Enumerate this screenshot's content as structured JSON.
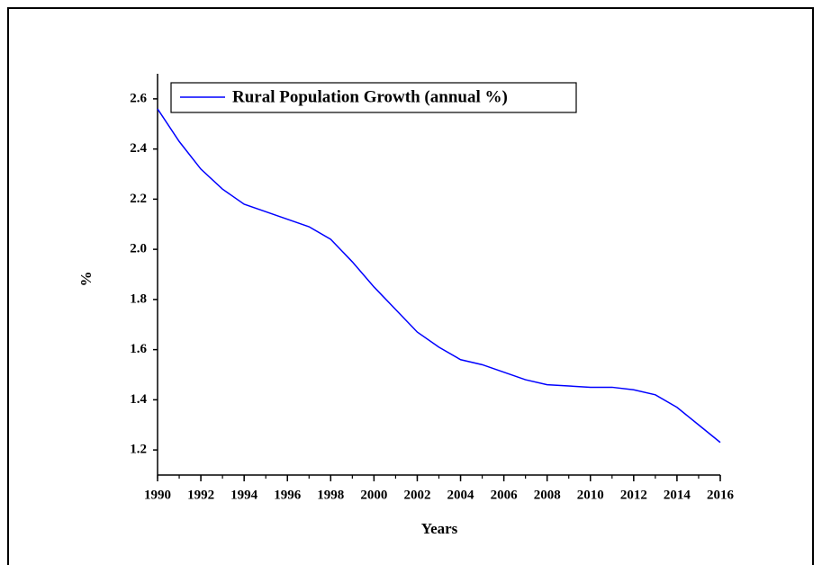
{
  "chart_data": {
    "type": "line",
    "x_label": "Years",
    "y_label": "%",
    "x": [
      1990,
      1991,
      1992,
      1993,
      1994,
      1995,
      1996,
      1997,
      1998,
      1999,
      2000,
      2001,
      2002,
      2003,
      2004,
      2005,
      2006,
      2007,
      2008,
      2009,
      2010,
      2011,
      2012,
      2013,
      2014,
      2015,
      2016
    ],
    "series": [
      {
        "name": "Rural Population Growth (annual %)",
        "color": "#0000ff",
        "values": [
          2.56,
          2.43,
          2.32,
          2.24,
          2.18,
          2.15,
          2.12,
          2.09,
          2.04,
          1.95,
          1.85,
          1.76,
          1.67,
          1.61,
          1.56,
          1.54,
          1.51,
          1.48,
          1.46,
          1.455,
          1.45,
          1.45,
          1.44,
          1.42,
          1.37,
          1.3,
          1.23
        ]
      }
    ],
    "xlim": [
      1990,
      2016
    ],
    "xticks": [
      1990,
      1992,
      1994,
      1996,
      1998,
      2000,
      2002,
      2004,
      2006,
      2008,
      2010,
      2012,
      2014,
      2016
    ],
    "ylim": [
      1.1,
      2.7
    ],
    "yticks": [
      1.2,
      1.4,
      1.6,
      1.8,
      {
        "value": 2.0,
        "label": "2.0"
      },
      2.2,
      2.4,
      2.6
    ],
    "legend": "top-left",
    "grid": false
  }
}
